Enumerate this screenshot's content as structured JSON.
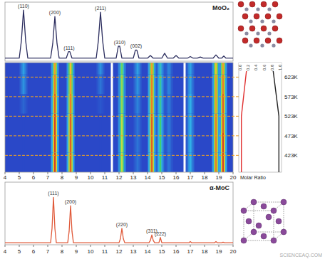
{
  "chart_data": [
    {
      "type": "line",
      "title": "MoO₂",
      "x": [
        4,
        5.0,
        5.15,
        5.3,
        5.45,
        5.6,
        7.2,
        7.35,
        7.5,
        7.65,
        7.8,
        8.3,
        8.45,
        8.55,
        8.7,
        10.4,
        10.55,
        10.7,
        10.85,
        11.0,
        11.8,
        11.95,
        12.05,
        12.2,
        13.0,
        13.15,
        13.25,
        13.4,
        14.0,
        14.2,
        14.4,
        15.0,
        15.2,
        15.4,
        15.8,
        16.0,
        16.2,
        16.8,
        17.0,
        17.2,
        17.5,
        17.7,
        17.9,
        18.6,
        18.8,
        19.0,
        19.2,
        19.35,
        19.5,
        20
      ],
      "values": [
        3,
        3,
        35,
        92,
        35,
        3,
        3,
        30,
        80,
        30,
        3,
        3,
        15,
        15,
        3,
        3,
        35,
        88,
        35,
        3,
        3,
        25,
        25,
        3,
        3,
        18,
        18,
        3,
        3,
        8,
        3,
        3,
        12,
        3,
        3,
        8,
        3,
        3,
        6,
        3,
        3,
        5,
        3,
        3,
        9,
        3,
        3,
        7,
        3,
        3
      ],
      "color": "#2b2d5e",
      "xlim": [
        4,
        20
      ],
      "ylim": [
        0,
        100
      ],
      "tick_labels": false,
      "annotations": [
        {
          "text": "(110)",
          "x": 5.3,
          "y": 92
        },
        {
          "text": "(200)",
          "x": 7.5,
          "y": 80
        },
        {
          "text": "(111)",
          "x": 8.5,
          "y": 15
        },
        {
          "text": "(211)",
          "x": 10.7,
          "y": 88
        },
        {
          "text": "(310)",
          "x": 12.05,
          "y": 25
        },
        {
          "text": "(002)",
          "x": 13.2,
          "y": 18
        }
      ]
    },
    {
      "type": "heatmap",
      "xlim": [
        4,
        20
      ],
      "xticks": [
        4,
        5,
        6,
        7,
        8,
        9,
        10,
        11,
        12,
        13,
        14,
        15,
        16,
        17,
        18,
        19,
        20
      ],
      "ylim": [
        380,
        660
      ],
      "yticks": [
        {
          "value": 423,
          "label": "423K"
        },
        {
          "value": 473,
          "label": "473K"
        },
        {
          "value": 523,
          "label": "523K"
        },
        {
          "value": 573,
          "label": "573K"
        },
        {
          "value": 623,
          "label": "623K"
        }
      ],
      "temperature_bins": [
        380,
        430,
        480,
        530,
        580,
        630,
        660
      ],
      "peaks": [
        {
          "center": 5.3,
          "intensity": [
            0,
            0,
            0,
            0.1,
            0.25,
            0.3
          ]
        },
        {
          "center": 7.5,
          "intensity": [
            0.95,
            0.95,
            0.95,
            0.9,
            0.85,
            0.8
          ]
        },
        {
          "center": 8.6,
          "intensity": [
            0.9,
            0.9,
            0.9,
            0.85,
            0.8,
            0.75
          ]
        },
        {
          "center": 10.7,
          "intensity": [
            0,
            0,
            0,
            0.05,
            0.15,
            0.25
          ]
        },
        {
          "center": 12.2,
          "intensity": [
            0.65,
            0.65,
            0.65,
            0.6,
            0.6,
            0.55
          ]
        },
        {
          "center": 13.3,
          "intensity": [
            0.15,
            0.15,
            0.15,
            0.2,
            0.25,
            0.3
          ]
        },
        {
          "center": 14.3,
          "intensity": [
            0.9,
            0.9,
            0.9,
            0.85,
            0.85,
            0.8
          ]
        },
        {
          "center": 14.9,
          "intensity": [
            0.5,
            0.5,
            0.5,
            0.45,
            0.45,
            0.4
          ]
        },
        {
          "center": 15.5,
          "intensity": [
            0.15,
            0.15,
            0.15,
            0.15,
            0.2,
            0.2
          ]
        },
        {
          "center": 17.0,
          "intensity": [
            0.35,
            0.35,
            0.35,
            0.35,
            0.3,
            0.3
          ]
        },
        {
          "center": 18.8,
          "intensity": [
            0.85,
            0.85,
            0.85,
            0.8,
            0.8,
            0.75
          ]
        },
        {
          "center": 19.3,
          "intensity": [
            0.95,
            0.95,
            0.9,
            0.9,
            0.85,
            0.8
          ]
        }
      ],
      "color_range": [
        0,
        1
      ],
      "panel_breaks": [
        11.5,
        16.6
      ]
    },
    {
      "type": "line",
      "title": "α-MoC",
      "x": [
        4,
        7.2,
        7.3,
        7.4,
        7.5,
        7.6,
        8.4,
        8.5,
        8.6,
        8.7,
        8.8,
        12.0,
        12.1,
        12.2,
        12.3,
        12.4,
        14.1,
        14.2,
        14.3,
        14.4,
        14.5,
        14.8,
        14.9,
        15.0,
        16.9,
        17.0,
        17.1,
        18.7,
        18.8,
        18.9,
        19.2,
        19.3,
        19.4,
        20
      ],
      "values": [
        1,
        1,
        25,
        77,
        25,
        1,
        1,
        20,
        63,
        20,
        1,
        1,
        8,
        25,
        8,
        1,
        1,
        5,
        14,
        5,
        1,
        1,
        10,
        1,
        1,
        3,
        1,
        1,
        3,
        1,
        1,
        2,
        1,
        1
      ],
      "color": "#e05a3a",
      "xlim": [
        4,
        20
      ],
      "xticks": [
        4,
        5,
        6,
        7,
        8,
        9,
        10,
        11,
        12,
        13,
        14,
        15,
        16,
        17,
        18,
        19,
        20
      ],
      "ylim": [
        0,
        100
      ],
      "tick_labels": "x",
      "annotations": [
        {
          "text": "(111)",
          "x": 7.4,
          "y": 77
        },
        {
          "text": "(200)",
          "x": 8.6,
          "y": 63
        },
        {
          "text": "(220)",
          "x": 12.2,
          "y": 25
        },
        {
          "text": "(311)",
          "x": 14.3,
          "y": 14
        },
        {
          "text": "(222)",
          "x": 14.9,
          "y": 10
        }
      ]
    },
    {
      "type": "line",
      "orientation": "horizontal",
      "x_label": "Molar Ratio",
      "temperature": [
        380,
        523,
        660
      ],
      "series": [
        {
          "color": "#e03030",
          "values": [
            0.03,
            0.03,
            0.18
          ]
        },
        {
          "color": "#222222",
          "values": [
            0.97,
            0.97,
            0.8
          ]
        }
      ],
      "xlim": [
        0,
        1
      ],
      "xticks": [
        {
          "value": 0,
          "label": "0.0"
        },
        {
          "value": 0.2,
          "label": "0.2"
        },
        {
          "value": 0.4,
          "label": "0.4"
        },
        {
          "value": 0.6,
          "label": "0.6"
        },
        {
          "value": 0.8,
          "label": "0.8"
        },
        {
          "value": 1,
          "label": "1.0"
        }
      ],
      "ylim": [
        380,
        660
      ]
    }
  ],
  "watermark": "SCIENCEAQ.COM"
}
